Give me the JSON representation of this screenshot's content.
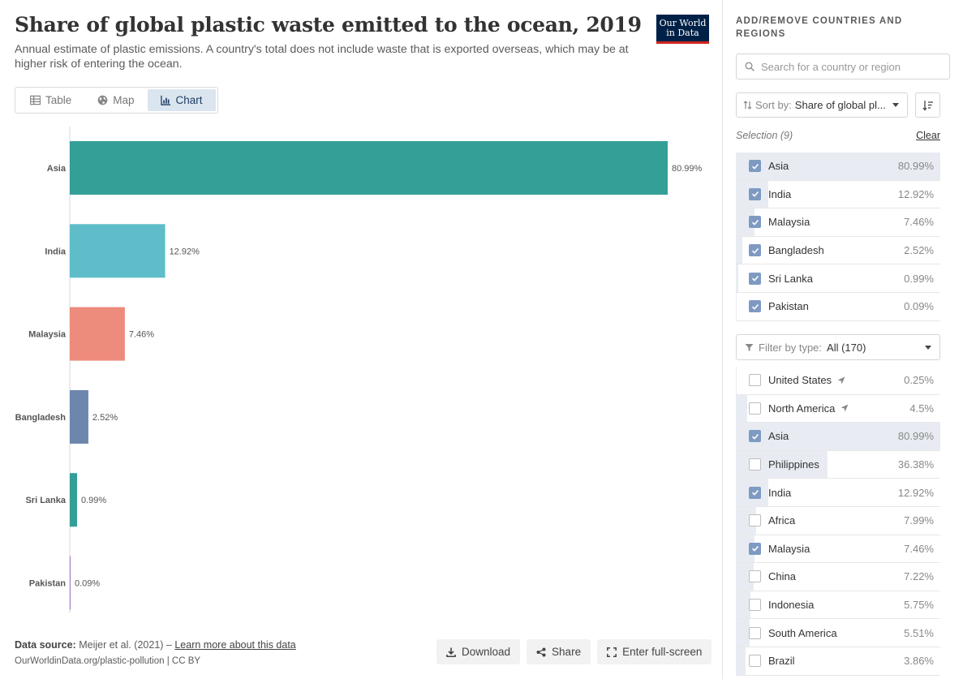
{
  "header": {
    "title": "Share of global plastic waste emitted to the ocean, 2019",
    "subtitle": "Annual estimate of plastic emissions. A country's total does not include waste that is exported overseas, which may be at higher risk of entering the ocean.",
    "logo_line1": "Our World",
    "logo_line2": "in Data"
  },
  "tabs": [
    {
      "label": "Table",
      "icon": "table-icon",
      "active": false
    },
    {
      "label": "Map",
      "icon": "globe-icon",
      "active": false
    },
    {
      "label": "Chart",
      "icon": "chart-icon",
      "active": true
    }
  ],
  "chart_data": {
    "type": "bar",
    "orientation": "horizontal",
    "categories": [
      "Asia",
      "India",
      "Malaysia",
      "Bangladesh",
      "Sri Lanka",
      "Pakistan"
    ],
    "values": [
      80.99,
      12.92,
      7.46,
      2.52,
      0.99,
      0.09
    ],
    "labels": [
      "80.99%",
      "12.92%",
      "7.46%",
      "2.52%",
      "0.99%",
      "0.09%"
    ],
    "colors": [
      "#339f97",
      "#5ebdc9",
      "#ed8b7c",
      "#6d86ae",
      "#339f97",
      "#a67bc1"
    ],
    "xlim": [
      0,
      80.99
    ],
    "title": "Share of global plastic waste emitted to the ocean, 2019"
  },
  "footer": {
    "source_label": "Data source:",
    "source_text": "Meijer et al. (2021) –",
    "learn_more": "Learn more about this data",
    "url": "OurWorldinData.org/plastic-pollution | CC BY"
  },
  "actions": {
    "download": "Download",
    "share": "Share",
    "fullscreen": "Enter full-screen"
  },
  "sidebar": {
    "header": "ADD/REMOVE COUNTRIES AND REGIONS",
    "search_placeholder": "Search for a country or region",
    "sort_label": "Sort by:",
    "sort_value": "Share of global pl...",
    "selection_label": "Selection (9)",
    "clear": "Clear",
    "filter_label": "Filter by type:",
    "filter_value": "All (170)",
    "bar_max": 80.99,
    "selected": [
      {
        "name": "Asia",
        "value": "80.99%",
        "share": 80.99
      },
      {
        "name": "India",
        "value": "12.92%",
        "share": 12.92
      },
      {
        "name": "Malaysia",
        "value": "7.46%",
        "share": 7.46
      },
      {
        "name": "Bangladesh",
        "value": "2.52%",
        "share": 2.52
      },
      {
        "name": "Sri Lanka",
        "value": "0.99%",
        "share": 0.99
      },
      {
        "name": "Pakistan",
        "value": "0.09%",
        "share": 0.09
      }
    ],
    "all": [
      {
        "name": "United States",
        "value": "0.25%",
        "share": 0.25,
        "checked": false,
        "arrow": true
      },
      {
        "name": "North America",
        "value": "4.5%",
        "share": 4.5,
        "checked": false,
        "arrow": true
      },
      {
        "name": "Asia",
        "value": "80.99%",
        "share": 80.99,
        "checked": true,
        "arrow": false
      },
      {
        "name": "Philippines",
        "value": "36.38%",
        "share": 36.38,
        "checked": false,
        "arrow": false
      },
      {
        "name": "India",
        "value": "12.92%",
        "share": 12.92,
        "checked": true,
        "arrow": false
      },
      {
        "name": "Africa",
        "value": "7.99%",
        "share": 7.99,
        "checked": false,
        "arrow": false
      },
      {
        "name": "Malaysia",
        "value": "7.46%",
        "share": 7.46,
        "checked": true,
        "arrow": false
      },
      {
        "name": "China",
        "value": "7.22%",
        "share": 7.22,
        "checked": false,
        "arrow": false
      },
      {
        "name": "Indonesia",
        "value": "5.75%",
        "share": 5.75,
        "checked": false,
        "arrow": false
      },
      {
        "name": "South America",
        "value": "5.51%",
        "share": 5.51,
        "checked": false,
        "arrow": false
      },
      {
        "name": "Brazil",
        "value": "3.86%",
        "share": 3.86,
        "checked": false,
        "arrow": false
      }
    ]
  }
}
